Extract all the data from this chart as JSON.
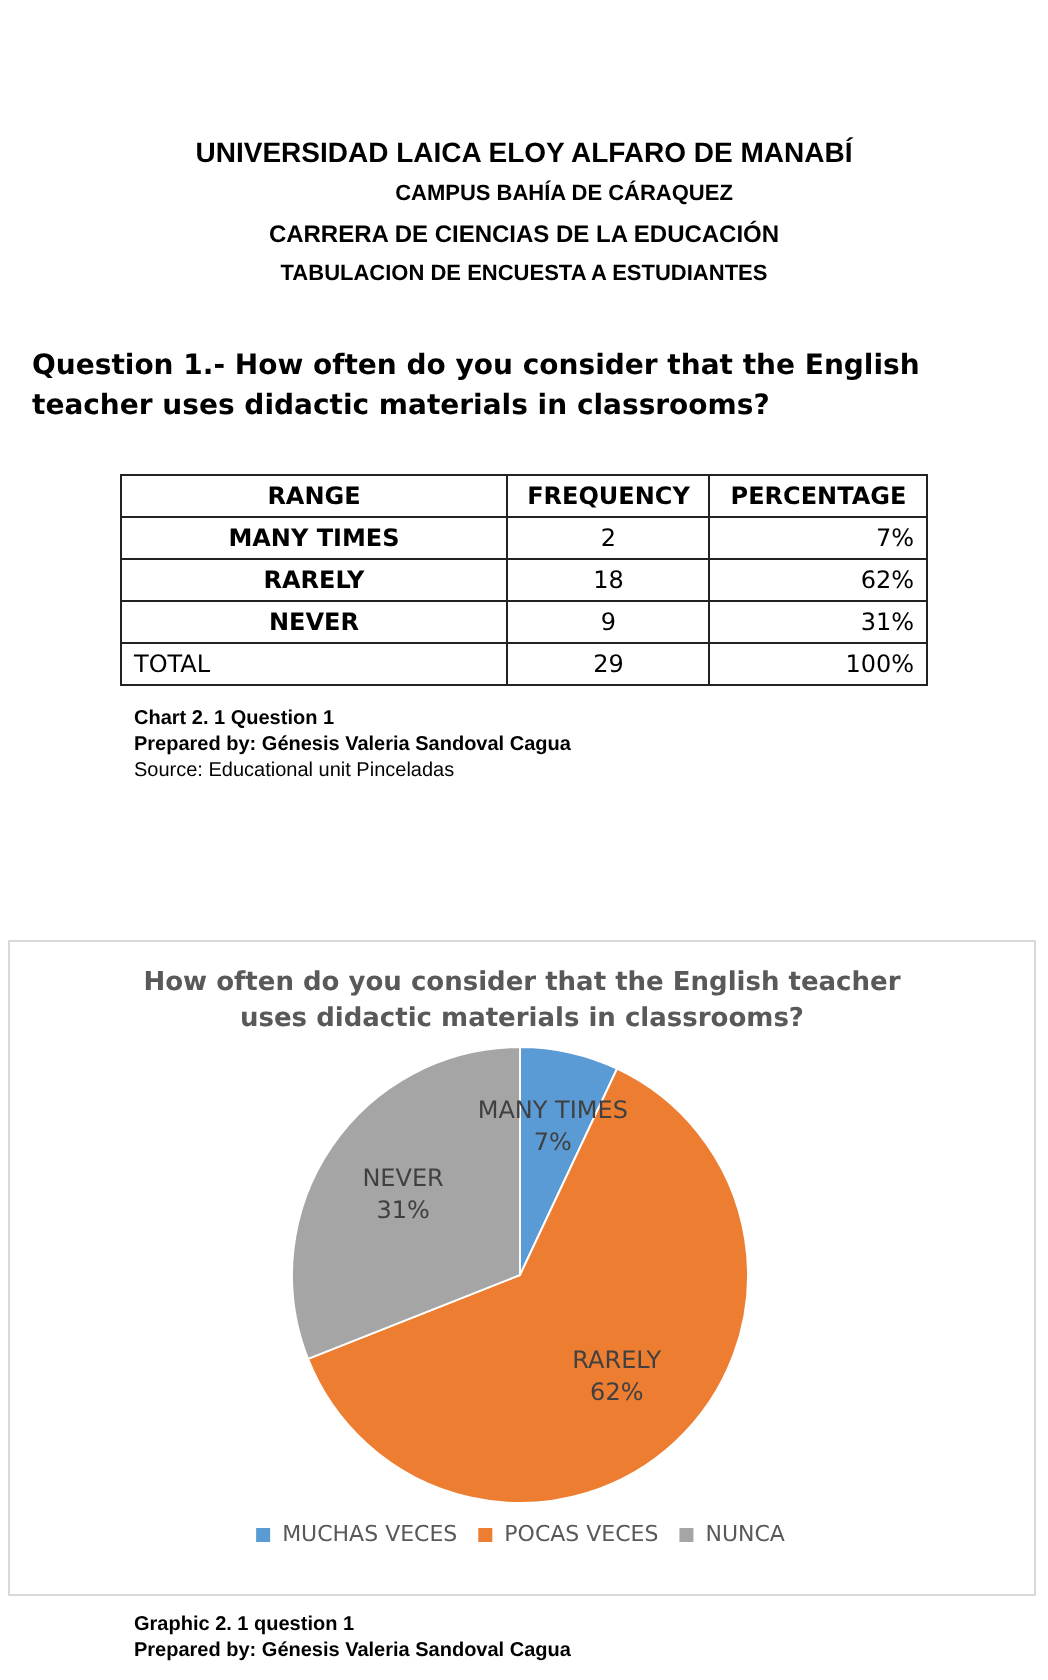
{
  "chart_data": [
    {
      "type": "other",
      "title": "Question 1.- How often do you consider that the English teacher uses didactic materials in classrooms?",
      "xlabel": "RANGE",
      "categories": [
        "MANY TIMES",
        "RARELY",
        "NEVER",
        "TOTAL"
      ],
      "series": [
        {
          "name": "FREQUENCY",
          "values": [
            2,
            18,
            9,
            29
          ],
          "value_labels": [
            "2",
            "18",
            "9",
            "29"
          ]
        },
        {
          "name": "PERCENTAGE",
          "values": [
            7,
            62,
            31,
            100
          ],
          "value_labels": [
            "7%",
            "62%",
            "31%",
            "100%"
          ]
        }
      ],
      "annotations": [
        "UNIVERSIDAD LAICA ELOY ALFARO DE MANABÍ",
        "CAMPUS BAHÍA DE CÁRAQUEZ",
        "CARRERA DE CIENCIAS DE LA EDUCACIÓN",
        "TABULACION DE ENCUESTA A ESTUDIANTES",
        "Chart 2. 1 Question 1",
        "Prepared by: Génesis Valeria Sandoval Cagua",
        "Source: Educational unit Pinceladas"
      ]
    },
    {
      "type": "pie",
      "title": "How often do you consider that the English teacher uses didactic materials in classrooms?",
      "categories": [
        "MUCHAS VECES",
        "POCAS VECES",
        "NUNCA"
      ],
      "values": [
        7,
        62,
        31
      ],
      "colors": [
        "#5b9bd5",
        "#ed7d31",
        "#a5a5a5"
      ],
      "value_labels": [
        "MANY TIMES 7%",
        "RARELY 62%",
        "NEVER 31%"
      ],
      "legend": "bottom",
      "annotations": [
        "Graphic 2. 1 question 1",
        "Prepared by: Génesis Valeria Sandoval Cagua"
      ]
    }
  ]
}
